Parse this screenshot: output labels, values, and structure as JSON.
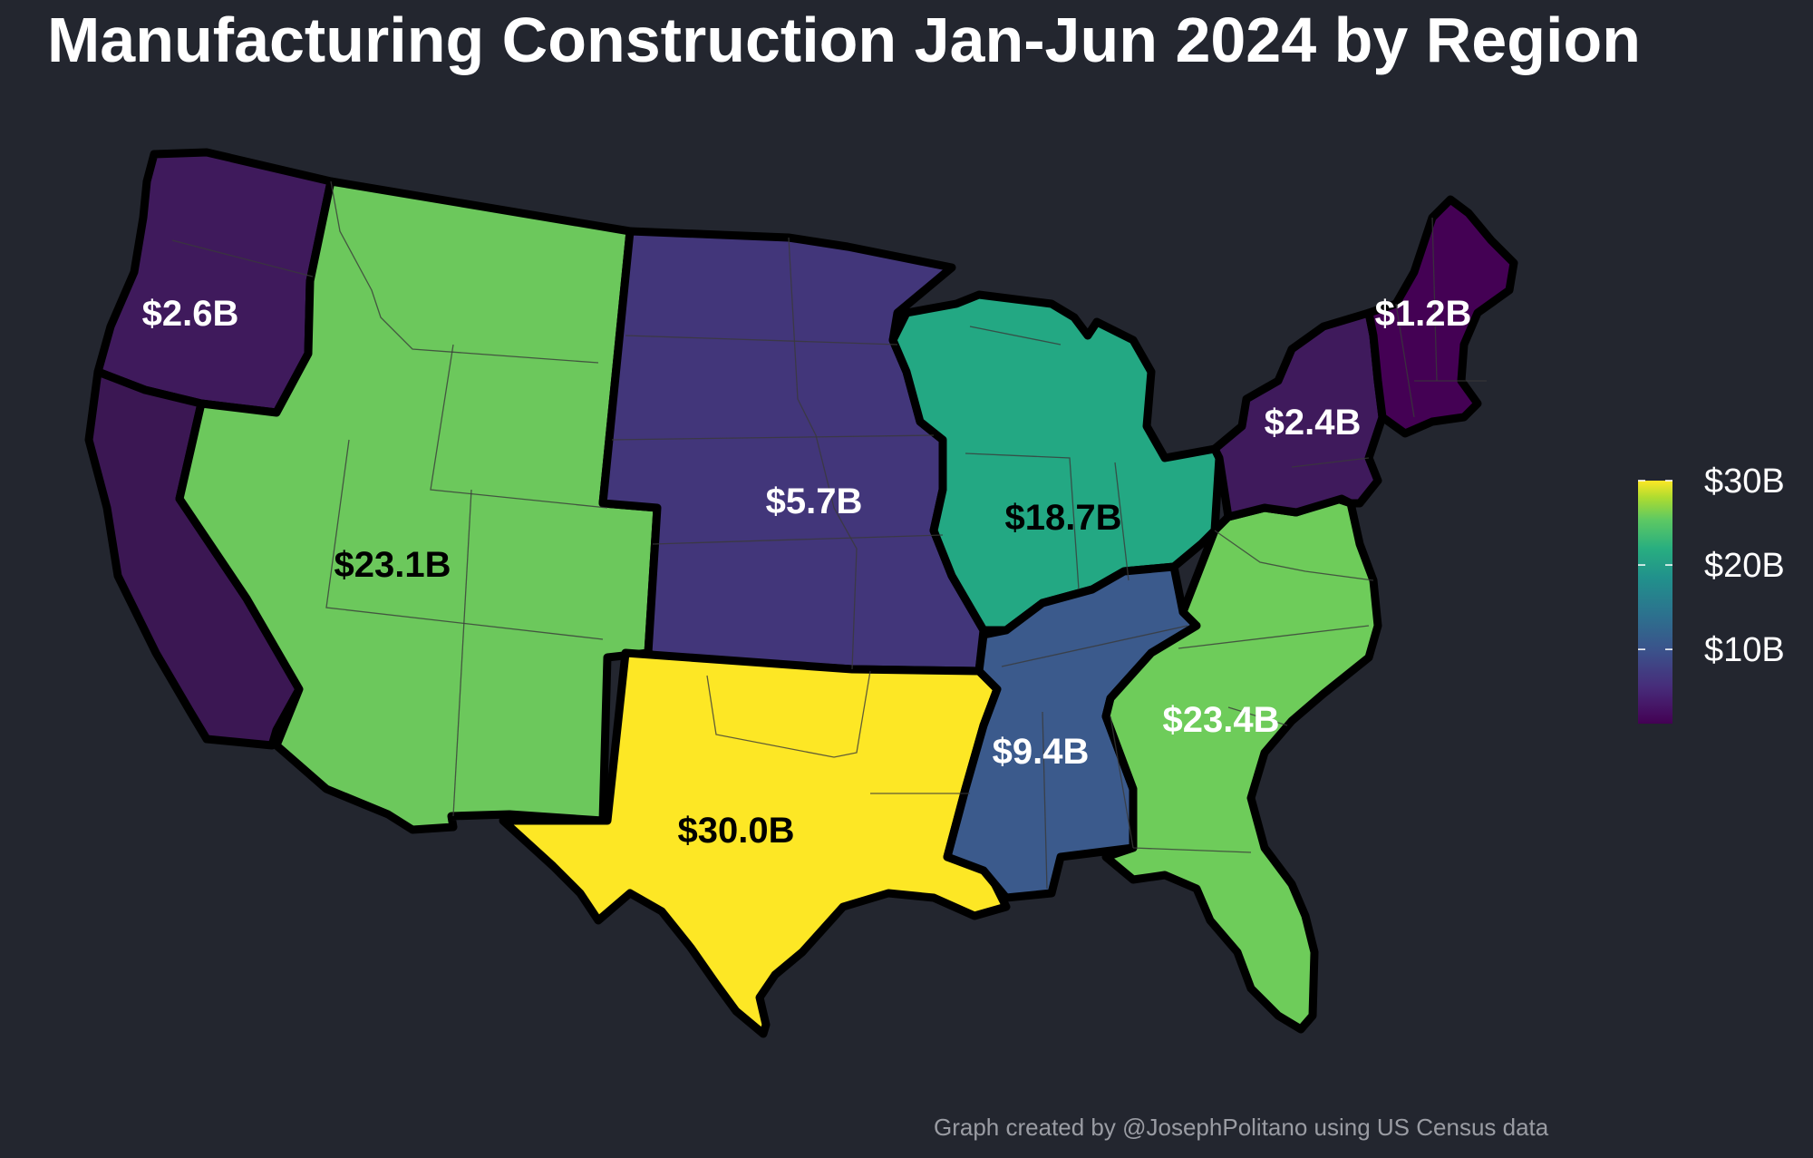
{
  "title": "Manufacturing Construction Jan-Jun 2024 by Region",
  "credit": "Graph created by @JosephPolitano using US Census data",
  "legend": {
    "ticks": [
      {
        "label": "$30B",
        "value": 30
      },
      {
        "label": "$20B",
        "value": 20
      },
      {
        "label": "$10B",
        "value": 10
      }
    ],
    "scale_min": 1.2,
    "scale_max": 30.0,
    "palette": "viridis"
  },
  "regions": [
    {
      "id": "pacific",
      "label": "$2.6B",
      "value": 2.6,
      "color": "#3f1a5c",
      "label_color": "#ffffff"
    },
    {
      "id": "california",
      "label": "",
      "value": 2.6,
      "color": "#3b1753",
      "label_color": "#ffffff"
    },
    {
      "id": "mountain",
      "label": "$23.1B",
      "value": 23.1,
      "color": "#6cc85c",
      "label_color": "#000000"
    },
    {
      "id": "west-north-central",
      "label": "$5.7B",
      "value": 5.7,
      "color": "#42367a",
      "label_color": "#ffffff"
    },
    {
      "id": "east-north-central",
      "label": "$18.7B",
      "value": 18.7,
      "color": "#23a883",
      "label_color": "#000000"
    },
    {
      "id": "west-south-central",
      "label": "$30.0B",
      "value": 30.0,
      "color": "#fde725",
      "label_color": "#000000"
    },
    {
      "id": "east-south-central",
      "label": "$9.4B",
      "value": 9.4,
      "color": "#3b5a8c",
      "label_color": "#ffffff"
    },
    {
      "id": "south-atlantic",
      "label": "$23.4B",
      "value": 23.4,
      "color": "#6ecc5a",
      "label_color": "#ffffff"
    },
    {
      "id": "middle-atlantic",
      "label": "$2.4B",
      "value": 2.4,
      "color": "#3f1a5c",
      "label_color": "#ffffff"
    },
    {
      "id": "new-england",
      "label": "$1.2B",
      "value": 1.2,
      "color": "#440154",
      "label_color": "#ffffff"
    }
  ]
}
